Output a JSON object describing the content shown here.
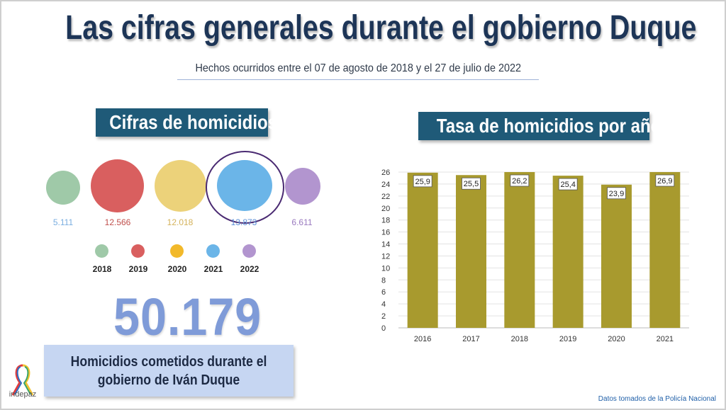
{
  "header": {
    "title": "Las cifras generales durante el gobierno Duque",
    "subtitle": "Hechos ocurridos entre el 07 de agosto de 2018 y el 27 de julio de 2022"
  },
  "left_panel": {
    "heading": "Cifras de homicidios",
    "bubbles": [
      {
        "year": "2018",
        "value": "5.111",
        "color": "#9fc9a8",
        "label_color": "#7aaee0"
      },
      {
        "year": "2019",
        "value": "12.566",
        "color": "#d95f5f",
        "label_color": "#c0504d"
      },
      {
        "year": "2020",
        "value": "12.018",
        "color": "#ecd27a",
        "label_color": "#d4b25a"
      },
      {
        "year": "2021",
        "value": "13.873",
        "color": "#6bb5e8",
        "label_color": "#5b8fd6"
      },
      {
        "year": "2022",
        "value": "6.611",
        "color": "#b295cf",
        "label_color": "#9a7abf"
      }
    ],
    "legend": [
      {
        "year": "2018",
        "color": "#9fc9a8"
      },
      {
        "year": "2019",
        "color": "#d95f5f"
      },
      {
        "year": "2020",
        "color": "#f2b92a"
      },
      {
        "year": "2021",
        "color": "#6bb5e8"
      },
      {
        "year": "2022",
        "color": "#b295cf"
      }
    ],
    "total": "50.179",
    "caption": "Homicidios cometidos durante el gobierno de Iván Duque"
  },
  "right_panel": {
    "heading": "Tasa de homicidios por año"
  },
  "logo": {
    "text": "indepaz",
    "icon": "ribbon-icon"
  },
  "footer": {
    "source": "Datos tomados de la Policía Nacional"
  },
  "chart_data": {
    "type": "bar",
    "categories": [
      "2016",
      "2017",
      "2018",
      "2019",
      "2020",
      "2021"
    ],
    "values": [
      25.9,
      25.5,
      26.2,
      25.4,
      23.9,
      26.9
    ],
    "value_labels": [
      "25,9",
      "25,5",
      "26,2",
      "25,4",
      "23,9",
      "26,9"
    ],
    "ylim": [
      0,
      26
    ],
    "yticks": [
      0,
      2,
      4,
      6,
      8,
      10,
      12,
      14,
      16,
      18,
      20,
      22,
      24,
      26
    ],
    "bar_color": "#a89a2e",
    "grid": true,
    "title": "",
    "xlabel": "",
    "ylabel": ""
  }
}
